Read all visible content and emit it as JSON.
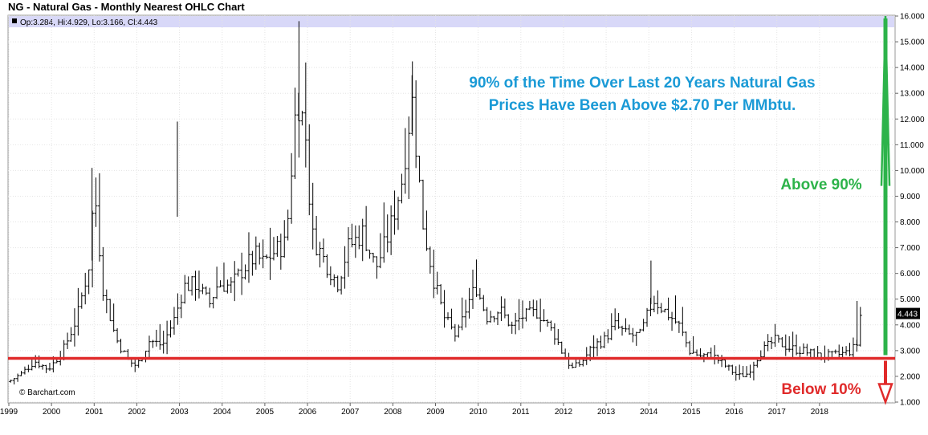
{
  "chart_data": {
    "type": "ohlc",
    "title": "NG - Natural Gas - Monthly Nearest OHLC Chart",
    "ohlc_readout": "Op:3.284, Hi:4.929, Lo:3.166, Cl:4.443",
    "last_price_label": "4.443",
    "credit": "© Barchart.com",
    "x_ticks": [
      "1999",
      "2000",
      "2001",
      "2002",
      "2003",
      "2004",
      "2005",
      "2006",
      "2007",
      "2008",
      "2009",
      "2010",
      "2011",
      "2012",
      "2013",
      "2014",
      "2015",
      "2016",
      "2017",
      "2018"
    ],
    "y_ticks": [
      "1.000",
      "2.000",
      "3.000",
      "4.000",
      "5.000",
      "6.000",
      "7.000",
      "8.000",
      "9.000",
      "10.000",
      "11.000",
      "12.000",
      "13.000",
      "14.000",
      "15.000",
      "16.000"
    ],
    "x_range": [
      1999.0,
      2019.0
    ],
    "ylim": [
      1.0,
      16.0
    ],
    "grid": true,
    "reference_line": {
      "value": 2.7,
      "color": "#e02a2a"
    },
    "annotations": {
      "headline_line1": "90% of the Time Over Last 20 Years Natural Gas",
      "headline_line2": "Prices Have Been Above $2.70 Per MMbtu.",
      "above_label": "Above 90%",
      "below_label": "Below 10%"
    },
    "colors": {
      "bars": "#000000",
      "headline": "#1a9ad6",
      "above": "#2db34a",
      "below": "#e02a2a",
      "header_band": "#d8d8f8"
    },
    "anchors": [
      [
        1999.0,
        1.8
      ],
      [
        1999.3,
        2.1
      ],
      [
        1999.6,
        2.6
      ],
      [
        1999.9,
        2.3
      ],
      [
        2000.0,
        2.4
      ],
      [
        2000.3,
        3.1
      ],
      [
        2000.6,
        4.3
      ],
      [
        2000.9,
        6.5
      ],
      [
        2001.0,
        9.5
      ],
      [
        2001.2,
        5.5
      ],
      [
        2001.5,
        3.5
      ],
      [
        2001.8,
        2.6
      ],
      [
        2002.0,
        2.4
      ],
      [
        2002.3,
        3.4
      ],
      [
        2002.6,
        3.2
      ],
      [
        2002.9,
        4.3
      ],
      [
        2003.1,
        5.5
      ],
      [
        2003.4,
        5.6
      ],
      [
        2003.7,
        4.8
      ],
      [
        2003.9,
        5.6
      ],
      [
        2004.2,
        5.5
      ],
      [
        2004.5,
        6.2
      ],
      [
        2004.8,
        6.7
      ],
      [
        2004.95,
        6.4
      ],
      [
        2005.2,
        6.8
      ],
      [
        2005.5,
        7.2
      ],
      [
        2005.75,
        13.0
      ],
      [
        2005.95,
        11.5
      ],
      [
        2006.1,
        7.5
      ],
      [
        2006.4,
        6.5
      ],
      [
        2006.7,
        5.6
      ],
      [
        2006.95,
        7.0
      ],
      [
        2007.3,
        7.6
      ],
      [
        2007.6,
        6.2
      ],
      [
        2007.9,
        7.5
      ],
      [
        2008.2,
        9.5
      ],
      [
        2008.45,
        12.8
      ],
      [
        2008.7,
        8.0
      ],
      [
        2008.95,
        5.8
      ],
      [
        2009.2,
        4.3
      ],
      [
        2009.5,
        3.5
      ],
      [
        2009.75,
        4.8
      ],
      [
        2009.95,
        5.5
      ],
      [
        2010.2,
        4.3
      ],
      [
        2010.5,
        4.6
      ],
      [
        2010.8,
        3.9
      ],
      [
        2011.0,
        4.3
      ],
      [
        2011.4,
        4.5
      ],
      [
        2011.8,
        3.6
      ],
      [
        2011.95,
        3.0
      ],
      [
        2012.2,
        2.3
      ],
      [
        2012.4,
        2.5
      ],
      [
        2012.7,
        3.2
      ],
      [
        2012.95,
        3.4
      ],
      [
        2013.2,
        4.0
      ],
      [
        2013.5,
        3.6
      ],
      [
        2013.8,
        3.6
      ],
      [
        2013.95,
        4.3
      ],
      [
        2014.1,
        5.0
      ],
      [
        2014.4,
        4.5
      ],
      [
        2014.7,
        4.0
      ],
      [
        2014.95,
        3.0
      ],
      [
        2015.2,
        2.8
      ],
      [
        2015.5,
        2.8
      ],
      [
        2015.8,
        2.4
      ],
      [
        2016.1,
        2.0
      ],
      [
        2016.3,
        2.1
      ],
      [
        2016.6,
        2.9
      ],
      [
        2016.95,
        3.4
      ],
      [
        2017.3,
        3.1
      ],
      [
        2017.6,
        3.0
      ],
      [
        2017.95,
        2.8
      ],
      [
        2018.3,
        2.8
      ],
      [
        2018.6,
        2.9
      ],
      [
        2018.75,
        3.0
      ],
      [
        2018.9,
        3.3
      ],
      [
        2018.96,
        4.4
      ]
    ],
    "series": [
      {
        "values_from": "anchors"
      }
    ]
  }
}
